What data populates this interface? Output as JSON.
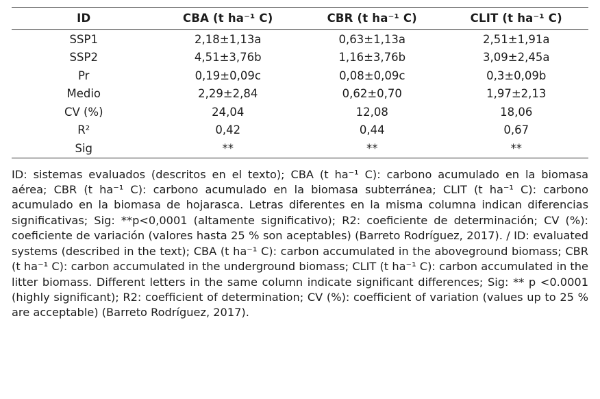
{
  "table": {
    "headers": [
      "ID",
      "CBA (t ha⁻¹ C)",
      "CBR (t ha⁻¹ C)",
      "CLIT (t ha⁻¹ C)"
    ],
    "rows": [
      [
        "SSP1",
        "2,18±1,13a",
        "0,63±1,13a",
        "2,51±1,91a"
      ],
      [
        "SSP2",
        "4,51±3,76b",
        "1,16±3,76b",
        "3,09±2,45a"
      ],
      [
        "Pr",
        "0,19±0,09c",
        "0,08±0,09c",
        "0,3±0,09b"
      ],
      [
        "Medio",
        "2,29±2,84",
        "0,62±0,70",
        "1,97±2,13"
      ],
      [
        "CV (%)",
        "24,04",
        "12,08",
        "18,06"
      ],
      [
        "R²",
        "0,42",
        "0,44",
        "0,67"
      ],
      [
        "Sig",
        "**",
        "**",
        "**"
      ]
    ]
  },
  "footnote": "ID: sistemas evaluados (descritos en el texto); CBA (t ha⁻¹ C): carbono acumulado en la biomasa aérea; CBR (t ha⁻¹ C): carbono acumulado en la biomasa subterránea; CLIT (t ha⁻¹ C): carbono acumulado en la biomasa de hojarasca. Letras diferentes en la misma columna indican diferencias significativas; Sig: **p<0,0001 (altamente significativo); R2: coeficiente de determinación; CV (%): coeficiente de variación (valores hasta 25 % son aceptables) (Barreto Rodríguez, 2017). / ID: evaluated systems (described in the text); CBA (t ha⁻¹ C): carbon accumulated in the aboveground biomass; CBR (t ha⁻¹ C): carbon accumulated in the underground biomass; CLIT (t ha⁻¹ C): carbon accumulated in the litter biomass. Different letters in the same column indicate significant differences; Sig: ** p <0.0001 (highly significant); R2: coefficient of determination; CV (%): coefficient of variation (values up to 25 % are acceptable) (Barreto Rodríguez, 2017)."
}
